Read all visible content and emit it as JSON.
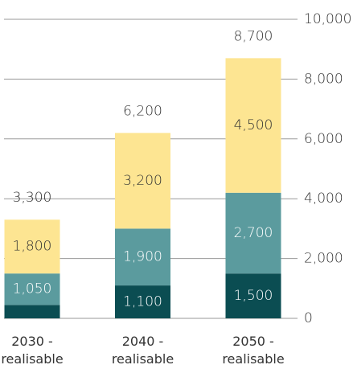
{
  "chart_data": {
    "type": "stacked_bar",
    "categories": [
      "2030 - realisable",
      "2040 - realisable",
      "2050 - realisable"
    ],
    "series": [
      {
        "color": "#0b4d52",
        "label_color": "#ffffff",
        "values": [
          450,
          1100,
          1500
        ],
        "value_labels": [
          null,
          "1,100",
          "1,500"
        ]
      },
      {
        "color": "#5b9b9e",
        "label_color": "#ffffff",
        "values": [
          1050,
          1900,
          2700
        ],
        "value_labels": [
          "1,050",
          "1,900",
          "2,700"
        ]
      },
      {
        "color": "#fde592",
        "label_color": "#333333",
        "values": [
          1800,
          3200,
          4500
        ],
        "value_labels": [
          "1,800",
          "3,200",
          "4,500"
        ]
      }
    ],
    "totals": [
      3300,
      6200,
      8700
    ],
    "total_labels": [
      "3,300",
      "6,200",
      "8,700"
    ],
    "ylim": [
      0,
      10000
    ],
    "yticks": [
      0,
      {
        "value": 2000,
        "label": "2,000"
      },
      {
        "value": 4000,
        "label": "4,000"
      },
      {
        "value": 6000,
        "label": "6,000"
      },
      {
        "value": 8000,
        "label": "8,000"
      },
      {
        "value": 10000,
        "label": "10,000"
      }
    ],
    "grid": true,
    "y_axis_side": "right"
  }
}
